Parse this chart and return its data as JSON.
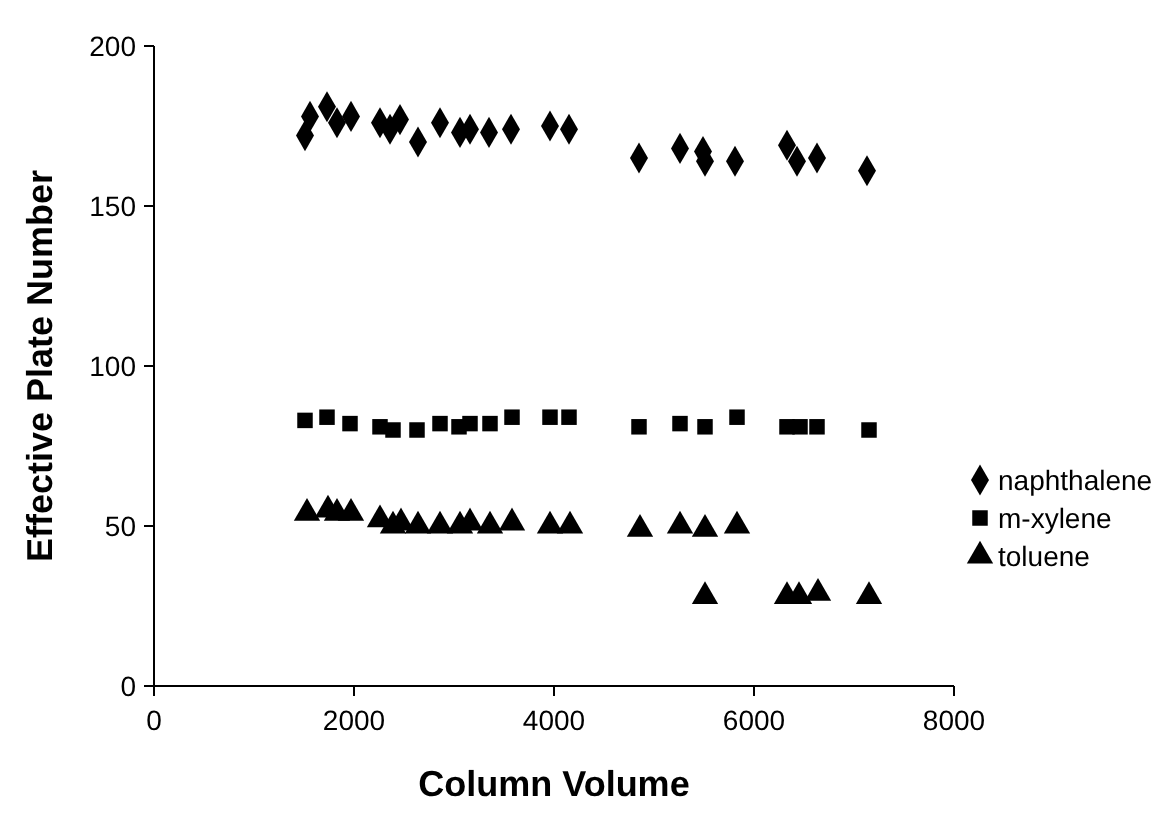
{
  "chart_data": {
    "type": "scatter",
    "xlabel": "Column Volume",
    "ylabel": "Effective Plate Number",
    "xlim": [
      0,
      8000
    ],
    "xticks": [
      0,
      2000,
      4000,
      6000,
      8000
    ],
    "ylim": [
      0,
      200
    ],
    "yticks": [
      0,
      50,
      100,
      150,
      200
    ],
    "grid": false,
    "legend": "right",
    "series": [
      {
        "name": "naphthalene",
        "color": "#000000",
        "marker": "diamond",
        "x": [
          1510,
          1560,
          1730,
          1830,
          1970,
          2260,
          2360,
          2460,
          2640,
          2860,
          3060,
          3160,
          3350,
          3570,
          3960,
          4150,
          4850,
          5260,
          5490,
          5510,
          5810,
          6330,
          6430,
          6630,
          7130
        ],
        "values": [
          172,
          178,
          181,
          176,
          178,
          176,
          174,
          177,
          170,
          176,
          173,
          174,
          173,
          174,
          175,
          174,
          165,
          168,
          167,
          164,
          164,
          169,
          164,
          165,
          161
        ]
      },
      {
        "name": "m-xylene",
        "color": "#000000",
        "marker": "square",
        "x": [
          1510,
          1730,
          1960,
          2260,
          2390,
          2630,
          2860,
          3050,
          3160,
          3360,
          3580,
          3960,
          4150,
          4850,
          5260,
          5510,
          5830,
          6330,
          6460,
          6630,
          7150
        ],
        "values": [
          83,
          84,
          82,
          81,
          80,
          80,
          82,
          81,
          82,
          82,
          84,
          84,
          84,
          81,
          82,
          81,
          84,
          81,
          81,
          81,
          80
        ]
      },
      {
        "name": "toluene",
        "color": "#000000",
        "marker": "triangle",
        "x": [
          1530,
          1740,
          1830,
          1970,
          2260,
          2390,
          2470,
          2640,
          2860,
          3060,
          3160,
          3360,
          3580,
          3960,
          4160,
          4860,
          5260,
          5510,
          5830,
          5510,
          6330,
          6450,
          6640,
          7150
        ],
        "values": [
          54,
          55,
          54,
          54,
          52,
          50,
          51,
          50,
          50,
          50,
          51,
          50,
          51,
          50,
          50,
          49,
          50,
          49,
          50,
          28,
          28,
          28,
          29,
          28
        ]
      }
    ]
  }
}
